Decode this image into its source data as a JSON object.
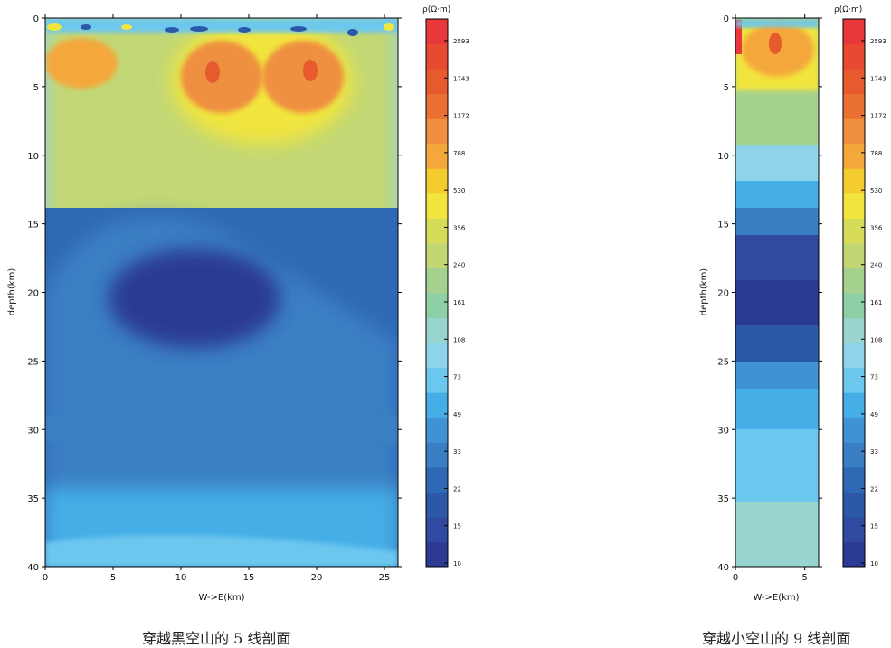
{
  "colors": {
    "scale": [
      "#2b3a93",
      "#2f4aa0",
      "#2c58a8",
      "#2f69b5",
      "#3a7fc4",
      "#3f93d4",
      "#45aee7",
      "#6cc7ee",
      "#8fd3e8",
      "#99d4cf",
      "#8ecfa6",
      "#a5d18f",
      "#c2d774",
      "#d7dc58",
      "#f1e53e",
      "#f5cc2e",
      "#f4a83b",
      "#ef8f3f",
      "#ea6f33",
      "#e65a2d",
      "#e74a30",
      "#e8383a"
    ]
  },
  "chart_data": [
    {
      "type": "heatmap",
      "title": "",
      "caption": "穿越黑空山的 5 线剖面",
      "xlabel": "W->E(km)",
      "ylabel": "depth(km)",
      "xlim": [
        0,
        26
      ],
      "ylim": [
        40,
        0
      ],
      "x_ticks": [
        "0",
        "5",
        "10",
        "15",
        "20",
        "25"
      ],
      "y_ticks": [
        "0",
        "5",
        "10",
        "15",
        "20",
        "25",
        "30",
        "35",
        "40"
      ],
      "colorbar": {
        "label": "ρ(Ω·m)",
        "ticks": [
          "2593",
          "1743",
          "1172",
          "788",
          "530",
          "356",
          "240",
          "161",
          "108",
          "73",
          "49",
          "33",
          "22",
          "15",
          "10"
        ]
      },
      "features": [
        {
          "desc": "shallow high-resistivity bodies",
          "x": [
            12,
            20
          ],
          "depth": [
            2,
            8
          ],
          "value": 1200
        },
        {
          "desc": "deep conductor",
          "x": [
            6,
            20
          ],
          "depth": [
            17,
            24
          ],
          "value": 12
        }
      ]
    },
    {
      "type": "heatmap",
      "title": "",
      "caption": "穿越小空山的 9 线剖面",
      "xlabel": "W->E(km)",
      "ylabel": "depth(km)",
      "xlim": [
        0,
        6
      ],
      "ylim": [
        40,
        0
      ],
      "x_ticks": [
        "0",
        "5"
      ],
      "y_ticks": [
        "0",
        "5",
        "10",
        "15",
        "20",
        "25",
        "30",
        "35",
        "40"
      ],
      "colorbar": {
        "label": "ρ(Ω·m)",
        "ticks": [
          "2593",
          "1743",
          "1172",
          "788",
          "530",
          "356",
          "240",
          "161",
          "108",
          "73",
          "49",
          "33",
          "22",
          "15",
          "10"
        ]
      },
      "features": [
        {
          "desc": "shallow resistor",
          "x": [
            1,
            5
          ],
          "depth": [
            0,
            5
          ],
          "value": 1172
        },
        {
          "desc": "mid-crust conductor",
          "x": [
            0,
            6
          ],
          "depth": [
            17,
            22
          ],
          "value": 15
        }
      ]
    }
  ]
}
